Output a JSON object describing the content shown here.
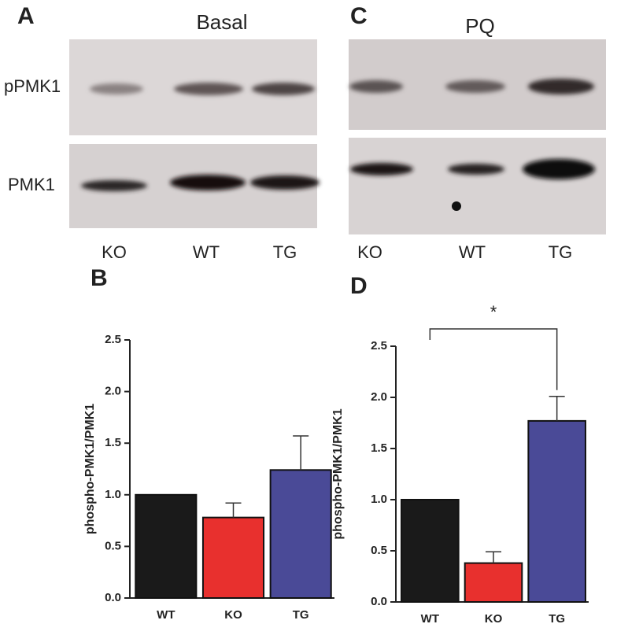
{
  "blots": [
    {
      "panel_label": "A",
      "title": "Basal",
      "rows": [
        "pPMK1",
        "PMK1"
      ],
      "lanes": [
        "KO",
        "WT",
        "TG"
      ]
    },
    {
      "panel_label": "C",
      "title": "PQ",
      "lanes": [
        "KO",
        "WT",
        "TG"
      ]
    }
  ],
  "chart_data": [
    {
      "type": "bar",
      "panel_label": "B",
      "y_label": "phospho-PMK1/PMK1",
      "categories": [
        "WT",
        "KO",
        "TG"
      ],
      "values": [
        1.0,
        0.78,
        1.24
      ],
      "errors": [
        0,
        0.14,
        0.33
      ],
      "colors": [
        "#1a1a1a",
        "#e8302e",
        "#4a4a97"
      ],
      "ylim": [
        0,
        2.5
      ],
      "yticks": [
        {
          "value": 0,
          "label": "0.0"
        },
        {
          "value": 0.5,
          "label": "0.5"
        },
        {
          "value": 1,
          "label": "1.0"
        },
        {
          "value": 1.5,
          "label": "1.5"
        },
        {
          "value": 2,
          "label": "2.0"
        },
        {
          "value": 2.5,
          "label": "2.5"
        }
      ]
    },
    {
      "type": "bar",
      "panel_label": "D",
      "y_label": "phospho-PMK1/PMK1",
      "categories": [
        "WT",
        "KO",
        "TG"
      ],
      "values": [
        1.0,
        0.38,
        1.77
      ],
      "errors": [
        0,
        0.11,
        0.24
      ],
      "colors": [
        "#1a1a1a",
        "#e8302e",
        "#4a4a97"
      ],
      "ylim": [
        0,
        2.5
      ],
      "yticks": [
        {
          "value": 0,
          "label": "0.0"
        },
        {
          "value": 0.5,
          "label": "0.5"
        },
        {
          "value": 1,
          "label": "1.0"
        },
        {
          "value": 1.5,
          "label": "1.5"
        },
        {
          "value": 2,
          "label": "2.0"
        },
        {
          "value": 2.5,
          "label": "2.5"
        }
      ],
      "annotation": "*"
    }
  ]
}
